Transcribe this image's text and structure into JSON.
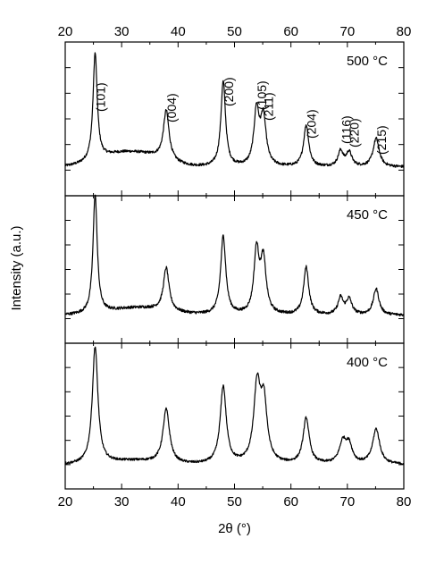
{
  "chart_data": {
    "type": "line",
    "xlabel": "2θ (°)",
    "ylabel": "Intensity  (a.u.)",
    "xlim": [
      20,
      80
    ],
    "x_ticks": [
      "20",
      "30",
      "40",
      "50",
      "60",
      "70",
      "80"
    ],
    "x_ticks_on_top_axis": true,
    "y_tick_labels": false,
    "grid": false,
    "legend": "none",
    "panels": [
      {
        "name": "500 °C",
        "label": "500 °C",
        "baseline": 0.18,
        "noise": 0.012,
        "humps": [
          {
            "x": 30.5,
            "amp": 0.13,
            "w": 4.5
          },
          {
            "x": 36.5,
            "amp": 0.04,
            "w": 3
          }
        ],
        "peaks": [
          {
            "x": 25.3,
            "amp": 0.98,
            "w": 0.45
          },
          {
            "x": 37.9,
            "amp": 0.45,
            "w": 0.6
          },
          {
            "x": 48.0,
            "amp": 0.78,
            "w": 0.5
          },
          {
            "x": 53.9,
            "amp": 0.5,
            "w": 0.55
          },
          {
            "x": 55.1,
            "amp": 0.44,
            "w": 0.6
          },
          {
            "x": 62.7,
            "amp": 0.38,
            "w": 0.55
          },
          {
            "x": 68.8,
            "amp": 0.14,
            "w": 0.55
          },
          {
            "x": 70.3,
            "amp": 0.13,
            "w": 0.6
          },
          {
            "x": 75.1,
            "amp": 0.26,
            "w": 0.65
          }
        ],
        "annotations": [
          {
            "text": "(101)",
            "x": 25.3
          },
          {
            "text": "(004)",
            "x": 37.9
          },
          {
            "text": "(200)",
            "x": 48.0
          },
          {
            "text": "(105)",
            "x": 53.9
          },
          {
            "text": "(211)",
            "x": 55.1
          },
          {
            "text": "(204)",
            "x": 62.7
          },
          {
            "text": "(116)",
            "x": 68.8
          },
          {
            "text": "(220)",
            "x": 70.3
          },
          {
            "text": "(215)",
            "x": 75.1
          }
        ]
      },
      {
        "name": "450 °C",
        "label": "450 °C",
        "baseline": 0.16,
        "noise": 0.012,
        "humps": [
          {
            "x": 33,
            "amp": 0.06,
            "w": 5
          }
        ],
        "peaks": [
          {
            "x": 25.3,
            "amp": 1.0,
            "w": 0.45
          },
          {
            "x": 37.9,
            "amp": 0.36,
            "w": 0.6
          },
          {
            "x": 48.0,
            "amp": 0.66,
            "w": 0.55
          },
          {
            "x": 53.9,
            "amp": 0.52,
            "w": 0.55
          },
          {
            "x": 55.1,
            "amp": 0.45,
            "w": 0.6
          },
          {
            "x": 62.7,
            "amp": 0.4,
            "w": 0.55
          },
          {
            "x": 68.8,
            "amp": 0.14,
            "w": 0.55
          },
          {
            "x": 70.3,
            "amp": 0.13,
            "w": 0.6
          },
          {
            "x": 75.1,
            "amp": 0.22,
            "w": 0.6
          }
        ],
        "annotations": []
      },
      {
        "name": "400 °C",
        "label": "400 °C",
        "baseline": 0.13,
        "noise": 0.01,
        "humps": [
          {
            "x": 32,
            "amp": 0.03,
            "w": 4
          }
        ],
        "peaks": [
          {
            "x": 25.3,
            "amp": 1.0,
            "w": 0.6
          },
          {
            "x": 37.9,
            "amp": 0.46,
            "w": 0.7
          },
          {
            "x": 48.0,
            "amp": 0.66,
            "w": 0.65
          },
          {
            "x": 54.0,
            "amp": 0.64,
            "w": 0.7
          },
          {
            "x": 55.2,
            "amp": 0.5,
            "w": 0.7
          },
          {
            "x": 62.7,
            "amp": 0.39,
            "w": 0.65
          },
          {
            "x": 69.2,
            "amp": 0.18,
            "w": 0.75
          },
          {
            "x": 70.3,
            "amp": 0.15,
            "w": 0.7
          },
          {
            "x": 75.1,
            "amp": 0.3,
            "w": 0.75
          }
        ],
        "annotations": []
      }
    ]
  }
}
